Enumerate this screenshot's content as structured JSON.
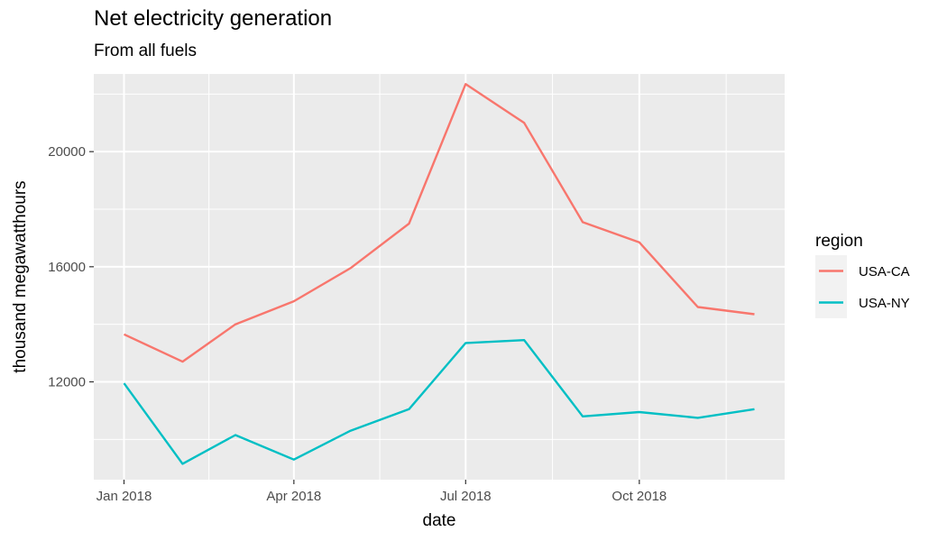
{
  "chart_data": {
    "type": "line",
    "title": "Net electricity generation",
    "subtitle": "From all fuels",
    "xlabel": "date",
    "ylabel": "thousand megawatthours",
    "x": [
      "2018-01",
      "2018-02",
      "2018-03",
      "2018-04",
      "2018-05",
      "2018-06",
      "2018-07",
      "2018-08",
      "2018-09",
      "2018-10",
      "2018-11",
      "2018-12"
    ],
    "x_ticks": [
      {
        "date": "2018-01",
        "label": "Jan 2018"
      },
      {
        "date": "2018-04",
        "label": "Apr 2018"
      },
      {
        "date": "2018-07",
        "label": "Jul 2018"
      },
      {
        "date": "2018-10",
        "label": "Oct 2018"
      }
    ],
    "y_ticks": [
      12000,
      16000,
      20000
    ],
    "ylim": [
      8600,
      22700
    ],
    "grid": true,
    "legend": {
      "title": "region",
      "position": "right"
    },
    "series": [
      {
        "name": "USA-CA",
        "color": "#f8766d",
        "values": [
          13650,
          12700,
          14000,
          14800,
          15950,
          17500,
          22350,
          21000,
          17550,
          16850,
          14600,
          14350
        ]
      },
      {
        "name": "USA-NY",
        "color": "#00bfc4",
        "values": [
          11950,
          9150,
          10150,
          9300,
          10300,
          11050,
          13350,
          13450,
          10800,
          10950,
          10750,
          11050
        ]
      }
    ]
  }
}
